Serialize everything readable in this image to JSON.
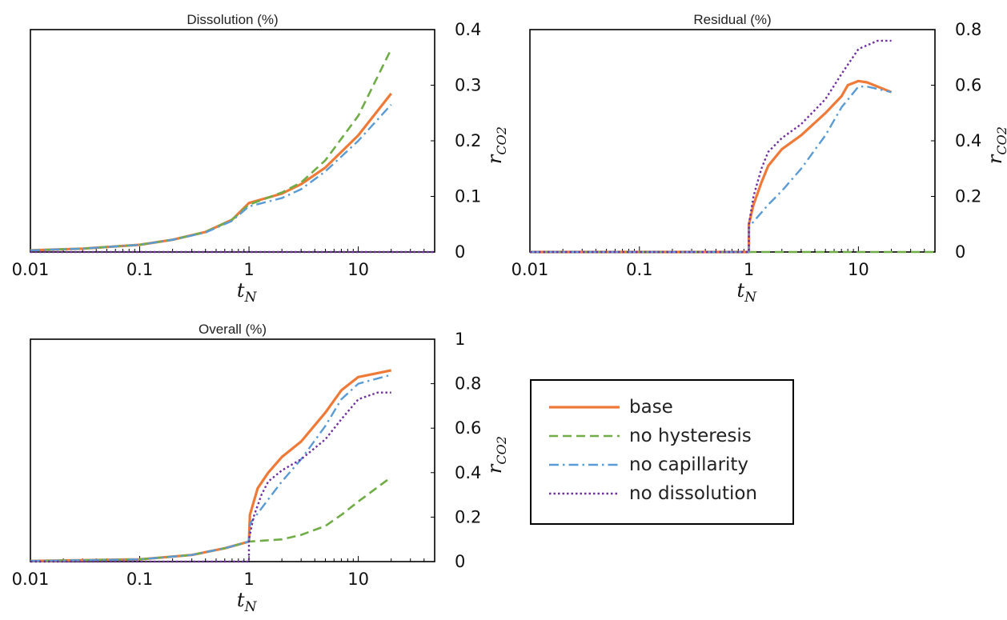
{
  "colors": {
    "base": "#ef7a38",
    "no_hysteresis": "#70ad47",
    "no_capillarity": "#5b9bd5",
    "no_dissolution": "#7030a0"
  },
  "legend": {
    "entries": [
      "base",
      "no hysteresis",
      "no capillarity",
      "no dissolution"
    ]
  },
  "chart_data": [
    {
      "type": "line",
      "title": "Dissolution (%)",
      "xlabel": "t_N",
      "ylabel": "r_CO2",
      "xscale": "log",
      "xlim": [
        0.01,
        50
      ],
      "ylim": [
        0,
        0.4
      ],
      "xticks": [
        "0.01",
        "0.1",
        "1",
        "10"
      ],
      "yticks": [
        "0",
        "0.1",
        "0.2",
        "0.3",
        "0.4"
      ],
      "grid": false,
      "series": [
        {
          "name": "base",
          "style": "solid",
          "x": [
            0.01,
            0.03,
            0.1,
            0.2,
            0.4,
            0.7,
            1,
            2,
            3,
            5,
            10,
            20
          ],
          "y": [
            0.003,
            0.006,
            0.013,
            0.022,
            0.036,
            0.058,
            0.088,
            0.105,
            0.122,
            0.152,
            0.21,
            0.285
          ]
        },
        {
          "name": "no hysteresis",
          "style": "dashed",
          "x": [
            0.01,
            0.03,
            0.1,
            0.2,
            0.4,
            0.7,
            1,
            2,
            3,
            5,
            10,
            20
          ],
          "y": [
            0.003,
            0.006,
            0.013,
            0.022,
            0.036,
            0.058,
            0.085,
            0.107,
            0.125,
            0.165,
            0.245,
            0.365
          ]
        },
        {
          "name": "no capillarity",
          "style": "dashdot",
          "x": [
            0.01,
            0.03,
            0.1,
            0.2,
            0.4,
            0.7,
            1,
            2,
            3,
            5,
            10,
            20
          ],
          "y": [
            0.003,
            0.006,
            0.013,
            0.022,
            0.035,
            0.056,
            0.082,
            0.097,
            0.113,
            0.145,
            0.2,
            0.265
          ]
        },
        {
          "name": "no dissolution",
          "style": "dotted",
          "x": [
            0.01,
            50
          ],
          "y": [
            0,
            0
          ]
        }
      ]
    },
    {
      "type": "line",
      "title": "Residual (%)",
      "xlabel": "t_N",
      "ylabel": "r_CO2",
      "xscale": "log",
      "xlim": [
        0.01,
        50
      ],
      "ylim": [
        0,
        0.8
      ],
      "xticks": [
        "0.01",
        "0.1",
        "1",
        "10"
      ],
      "yticks": [
        "0",
        "0.2",
        "0.4",
        "0.6",
        "0.8"
      ],
      "grid": false,
      "series": [
        {
          "name": "base",
          "style": "solid",
          "x": [
            0.01,
            0.999,
            1,
            1.1,
            1.3,
            1.5,
            2,
            3,
            5,
            7,
            8,
            10,
            12,
            20
          ],
          "y": [
            0,
            0,
            0.1,
            0.17,
            0.25,
            0.31,
            0.37,
            0.42,
            0.5,
            0.56,
            0.6,
            0.615,
            0.61,
            0.575
          ]
        },
        {
          "name": "no hysteresis",
          "style": "dashed",
          "x": [
            0.01,
            50
          ],
          "y": [
            0,
            0
          ]
        },
        {
          "name": "no capillarity",
          "style": "dashdot",
          "x": [
            0.01,
            0.999,
            1,
            1.5,
            2,
            3,
            5,
            7,
            10,
            12,
            20
          ],
          "y": [
            0,
            0,
            0.09,
            0.17,
            0.22,
            0.3,
            0.42,
            0.52,
            0.595,
            0.595,
            0.575
          ]
        },
        {
          "name": "no dissolution",
          "style": "dotted",
          "x": [
            0.01,
            0.999,
            1,
            1.1,
            1.3,
            1.5,
            2,
            3,
            5,
            7,
            10,
            15,
            20
          ],
          "y": [
            0,
            0,
            0.1,
            0.2,
            0.3,
            0.36,
            0.41,
            0.46,
            0.55,
            0.64,
            0.73,
            0.76,
            0.76
          ]
        }
      ]
    },
    {
      "type": "line",
      "title": "Overall (%)",
      "xlabel": "t_N",
      "ylabel": "r_CO2",
      "xscale": "log",
      "xlim": [
        0.01,
        50
      ],
      "ylim": [
        0,
        1
      ],
      "xticks": [
        "0.01",
        "0.1",
        "1",
        "10"
      ],
      "yticks": [
        "0",
        "0.2",
        "0.4",
        "0.6",
        "0.8",
        "1"
      ],
      "grid": false,
      "series": [
        {
          "name": "base",
          "style": "solid",
          "x": [
            0.01,
            0.1,
            0.3,
            0.6,
            1,
            1.02,
            1.2,
            1.5,
            2,
            3,
            5,
            7,
            10,
            20
          ],
          "y": [
            0.003,
            0.01,
            0.03,
            0.06,
            0.09,
            0.21,
            0.33,
            0.4,
            0.47,
            0.54,
            0.67,
            0.77,
            0.83,
            0.86
          ]
        },
        {
          "name": "no hysteresis",
          "style": "dashed",
          "x": [
            0.01,
            0.1,
            0.3,
            0.6,
            1,
            2,
            3,
            5,
            7,
            10,
            20
          ],
          "y": [
            0.003,
            0.01,
            0.03,
            0.06,
            0.09,
            0.1,
            0.12,
            0.16,
            0.21,
            0.27,
            0.38
          ]
        },
        {
          "name": "no capillarity",
          "style": "dashdot",
          "x": [
            0.01,
            0.1,
            0.3,
            0.6,
            1,
            1.02,
            1.5,
            2,
            3,
            5,
            7,
            10,
            20
          ],
          "y": [
            0.003,
            0.01,
            0.03,
            0.06,
            0.09,
            0.17,
            0.28,
            0.36,
            0.46,
            0.61,
            0.73,
            0.8,
            0.84
          ]
        },
        {
          "name": "no dissolution",
          "style": "dotted",
          "x": [
            0.01,
            0.999,
            1,
            1.1,
            1.3,
            1.5,
            2,
            3,
            5,
            7,
            10,
            15,
            20
          ],
          "y": [
            0,
            0,
            0.1,
            0.2,
            0.3,
            0.36,
            0.41,
            0.46,
            0.55,
            0.64,
            0.73,
            0.76,
            0.76
          ]
        }
      ]
    }
  ]
}
